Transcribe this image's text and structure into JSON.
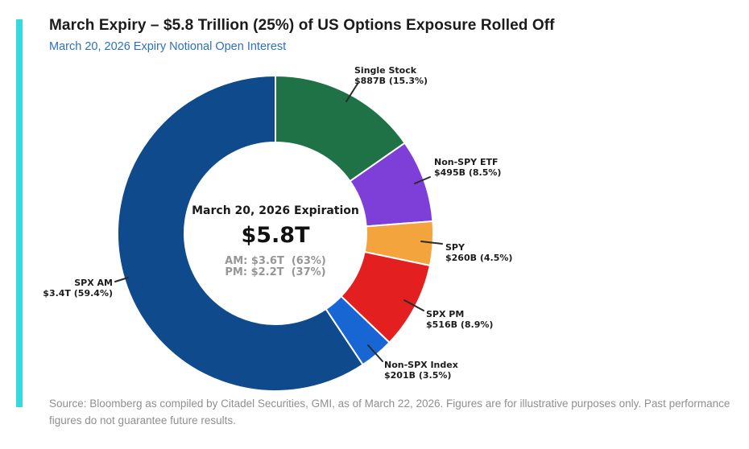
{
  "header": {
    "title": "March Expiry – $5.8 Trillion (25%) of US Options Exposure Rolled Off",
    "subtitle": "March 20, 2026 Expiry Notional Open Interest"
  },
  "chart_data": {
    "type": "pie",
    "variant": "donut",
    "title": "March 20, 2026 Expiry Notional Open Interest",
    "start_angle_deg": -90,
    "direction": "clockwise",
    "legend_position": "external-callouts",
    "total": {
      "label": "$5.8T",
      "trillions": 5.8,
      "share_of_exposure_pct": 25
    },
    "center": {
      "heading": "March 20, 2026 Expiration",
      "total_label": "$5.8T",
      "am_line": "AM: $3.6T  (63%)",
      "pm_line": "PM: $2.2T  (37%)"
    },
    "segments": [
      {
        "id": "single-stock",
        "name": "Single Stock",
        "value_billions": 887,
        "pct": 15.3,
        "color": "#1e7245",
        "label_line1": "Single Stock",
        "label_line2": "$887B (15.3%)"
      },
      {
        "id": "non-spy-etf",
        "name": "Non-SPY ETF",
        "value_billions": 495,
        "pct": 8.5,
        "color": "#7e3fd8",
        "label_line1": "Non-SPY ETF",
        "label_line2": "$495B (8.5%)"
      },
      {
        "id": "spy",
        "name": "SPY",
        "value_billions": 260,
        "pct": 4.5,
        "color": "#f4a43c",
        "label_line1": "SPY",
        "label_line2": "$260B (4.5%)"
      },
      {
        "id": "spx-pm",
        "name": "SPX PM",
        "value_billions": 516,
        "pct": 8.9,
        "color": "#e41f1f",
        "label_line1": "SPX PM",
        "label_line2": "$516B (8.9%)"
      },
      {
        "id": "non-spx-index",
        "name": "Non-SPX Index",
        "value_billions": 201,
        "pct": 3.5,
        "color": "#1766d4",
        "label_line1": "Non-SPX Index",
        "label_line2": "$201B (3.5%)"
      },
      {
        "id": "spx-am",
        "name": "SPX AM",
        "value_billions": 3400,
        "pct": 59.4,
        "color": "#0f4a8c",
        "label_line1": "SPX AM",
        "label_line2": "$3.4T (59.4%)"
      }
    ]
  },
  "footer": {
    "source": "Source: Bloomberg as compiled by Citadel Securities, GMI, as of March 22, 2026. Figures are for illustrative purposes only. Past performance figures do not guarantee future results."
  },
  "colors": {
    "accent_bar": "#35d9e0",
    "subtitle_blue": "#2e6fbe",
    "center_muted_gray": "#969696",
    "source_gray": "#8f8f8f"
  }
}
